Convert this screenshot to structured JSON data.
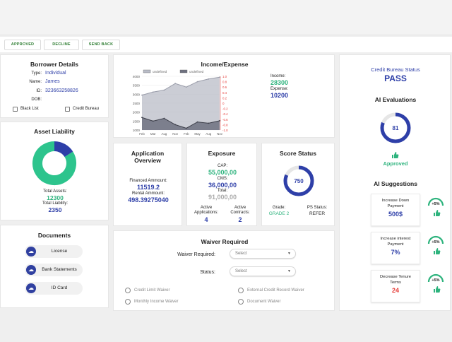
{
  "actions": {
    "approved": "APPROVED",
    "decline": "DECLINE",
    "send_back": "SEND BACK"
  },
  "borrower": {
    "title": "Borrower Details",
    "type_label": "Type:",
    "type_value": "Individual",
    "name_label": "Name:",
    "name_value": "James",
    "id_label": "ID:",
    "id_value": "323663258826",
    "dob_label": "DOB:",
    "dob_value": "",
    "blacklist_label": "Black List",
    "bureau_label": "Credit Bureau"
  },
  "asset_liability": {
    "title": "Asset Liability",
    "total_assets_label": "Total Assets:",
    "total_assets_value": "12300",
    "total_liability_label": "Total Liability:",
    "total_liability_value": "2350",
    "assets": 12300,
    "liability": 2350,
    "asset_color": "#2dc48d",
    "liability_color": "#2e3fa8"
  },
  "documents": {
    "title": "Documents",
    "items": [
      "License",
      "Bank Statements",
      "ID Card"
    ]
  },
  "income_expense": {
    "title": "Income/Expense",
    "income_label": "Income:",
    "income_value": "28300",
    "expense_label": "Expense:",
    "expense_value": "10200"
  },
  "chart_data": {
    "type": "area",
    "title": "Income/Expense",
    "categories": [
      "Feb",
      "Mar",
      "Aug",
      "Nov",
      "Feb",
      "May",
      "Aug",
      "Nov"
    ],
    "legend": [
      "undefined",
      "undefined"
    ],
    "ylim": [
      1000,
      4000
    ],
    "y_ticks": [
      "4000",
      "3500",
      "3000",
      "2500",
      "2000",
      "1500",
      "1000"
    ],
    "y2_ticks": [
      "1.0",
      "0.8",
      "0.6",
      "0.4",
      "0.2",
      "0",
      "-0.2",
      "-0.4",
      "-0.6",
      "-0.8",
      "-1.0"
    ],
    "series": [
      {
        "values": [
          2950,
          3120,
          3230,
          3600,
          3400,
          3700,
          3850,
          3950
        ],
        "color": "#b9bcc7"
      },
      {
        "values": [
          1700,
          1500,
          1650,
          1300,
          1100,
          1450,
          1380,
          1520
        ],
        "color": "#6e7180"
      }
    ],
    "legend_position": "top",
    "right_axis_color": "#e53935"
  },
  "application": {
    "title_line1": "Application",
    "title_line2": "Overview",
    "financed_label": "Financed Ammount:",
    "financed_value": "11519.2",
    "rental_label": "Rental Ammount:",
    "rental_value": "498.39275040"
  },
  "exposure": {
    "title": "Exposure",
    "cap_label": "CAP:",
    "cap_value": "55,000,00",
    "cms_label": "CMS:",
    "cms_value": "36,000,00",
    "total_label": "Total:",
    "total_value": "91,000,00",
    "active_apps_label_1": "Active",
    "active_apps_label_2": "Applications:",
    "active_apps_value": "4",
    "active_contracts_label_1": "Active",
    "active_contracts_label_2": "Contracts:",
    "active_contracts_value": "2"
  },
  "score": {
    "title": "Score Status",
    "value": "750",
    "fraction": 0.82,
    "grade_label": "Grade:",
    "grade_value": "GRADE 2",
    "ps_label": "PS Status:",
    "ps_value": "REFER"
  },
  "waiver": {
    "title": "Waiver Required",
    "required_label": "Waiver Required:",
    "required_placeholder": "Select",
    "status_label": "Status:",
    "status_placeholder": "Select",
    "options": [
      "Credit Limit Waiver",
      "External Credit Record Waiver",
      "Monthly Income Waiver",
      "Document Waiver"
    ]
  },
  "credit": {
    "bureau_title": "Credit Bureau Status",
    "bureau_value": "PASS",
    "ai_eval_title": "AI Evaluations",
    "ai_eval_value": "81",
    "ai_eval_fraction": 0.81,
    "approved": "Approved",
    "ai_sugg_title": "AI Suggestions",
    "suggestions": [
      {
        "line1": "Increase Down",
        "line2": "Payment",
        "value": "500$",
        "badge": "+5%"
      },
      {
        "line1": "Increase interest",
        "line2": "Payment",
        "value": "7%",
        "badge": "+5%"
      },
      {
        "line1": "Decrease Tenure",
        "line2": "Terms",
        "value": "24",
        "badge": "+5%"
      }
    ]
  },
  "colors": {
    "accent": "#2e3fa8",
    "green": "#2db37d",
    "red": "#e53935"
  }
}
